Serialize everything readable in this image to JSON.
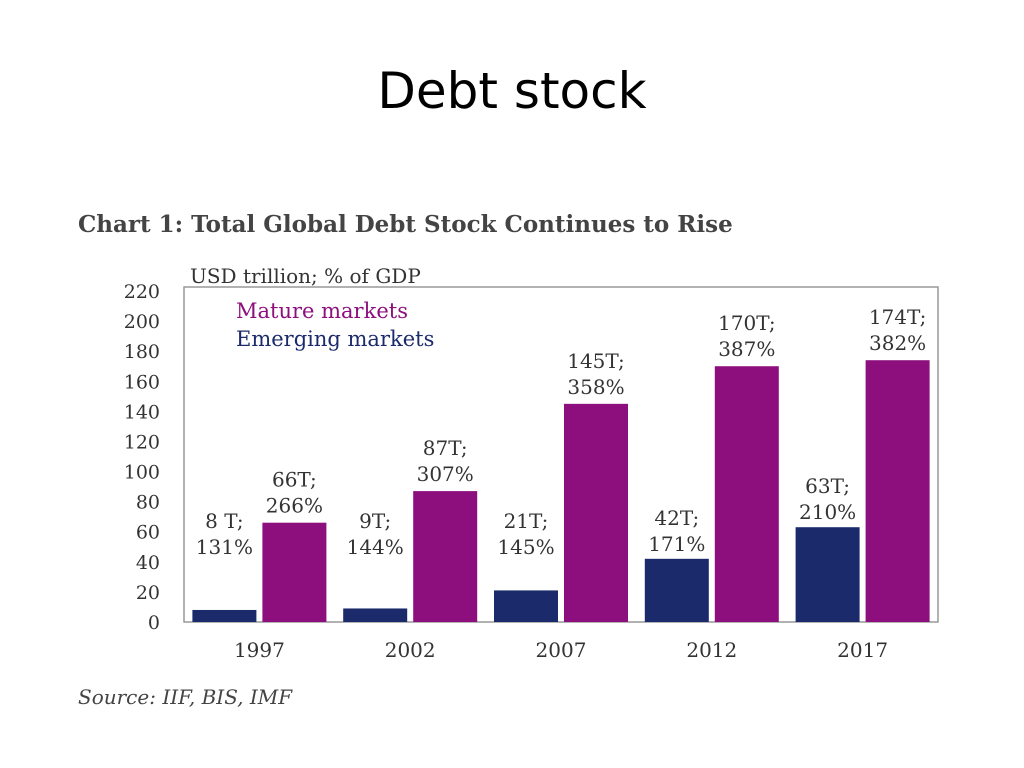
{
  "slide": {
    "title": "Debt stock"
  },
  "chart_data": {
    "type": "bar",
    "title": "Chart 1: Total Global Debt Stock Continues to Rise",
    "unit_label": "USD trillion; % of GDP",
    "source": "Source: IIF, BIS, IMF",
    "categories": [
      "1997",
      "2002",
      "2007",
      "2012",
      "2017"
    ],
    "ylim": [
      0,
      220
    ],
    "yticks": [
      0,
      20,
      40,
      60,
      80,
      100,
      120,
      140,
      160,
      180,
      200,
      220
    ],
    "grid": false,
    "legend_position": "top-left",
    "series": [
      {
        "name": "Emerging markets",
        "color": "#1b2a6b",
        "values": [
          8,
          9,
          21,
          42,
          63
        ],
        "labels": [
          [
            "8 T;",
            "131%"
          ],
          [
            "9T;",
            "144%"
          ],
          [
            "21T;",
            "145%"
          ],
          [
            "42T;",
            "171%"
          ],
          [
            "63T;",
            "210%"
          ]
        ]
      },
      {
        "name": "Mature markets",
        "color": "#8d0f7e",
        "values": [
          66,
          87,
          145,
          170,
          174
        ],
        "labels": [
          [
            "66T;",
            "266%"
          ],
          [
            "87T;",
            "307%"
          ],
          [
            "145T;",
            "358%"
          ],
          [
            "170T;",
            "387%"
          ],
          [
            "174T;",
            "382%"
          ]
        ]
      }
    ]
  }
}
